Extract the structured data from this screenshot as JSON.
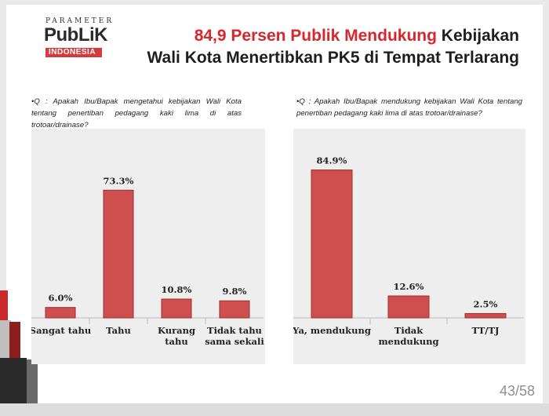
{
  "logo": {
    "top": "PARAMETER",
    "main": "PubLiK",
    "sub": "INDONESIA"
  },
  "header": {
    "title_highlight": "84,9 Persen Publik Mendukung",
    "title_rest_line1": " Kebijakan",
    "title_line2": "Wali Kota Menertibkan PK5 di Tempat Terlarang"
  },
  "questions": {
    "left": "•Q : Apakah Ibu/Bapak mengetahui kebijakan Wali Kota tentang penertiban pedagang kaki lima di atas trotoar/drainase?",
    "right": "•Q : Apakah Ibu/Bapak mendukung kebijakan Wali Kota tentang penertiban pedagang kaki lima di atas trotoar/drainase?"
  },
  "colors": {
    "bar": "#cf4f4e",
    "title_highlight": "#d8262c",
    "logo_red": "#d63a3a"
  },
  "chart_data": [
    {
      "type": "bar",
      "categories": [
        [
          "Sangat tahu"
        ],
        [
          "Tahu"
        ],
        [
          "Kurang",
          "tahu"
        ],
        [
          "Tidak tahu",
          "sama sekali"
        ]
      ],
      "values": [
        6.0,
        73.3,
        10.8,
        9.8
      ],
      "value_labels": [
        "6.0%",
        "73.3%",
        "10.8%",
        "9.8%"
      ],
      "ylim": [
        0,
        100
      ]
    },
    {
      "type": "bar",
      "categories": [
        [
          "Ya, mendukung"
        ],
        [
          "Tidak",
          "mendukung"
        ],
        [
          "TT/TJ"
        ]
      ],
      "values": [
        84.9,
        12.6,
        2.5
      ],
      "value_labels": [
        "84.9%",
        "12.6%",
        "2.5%"
      ],
      "ylim": [
        0,
        100
      ]
    }
  ],
  "footer": {
    "page": "43/58"
  }
}
